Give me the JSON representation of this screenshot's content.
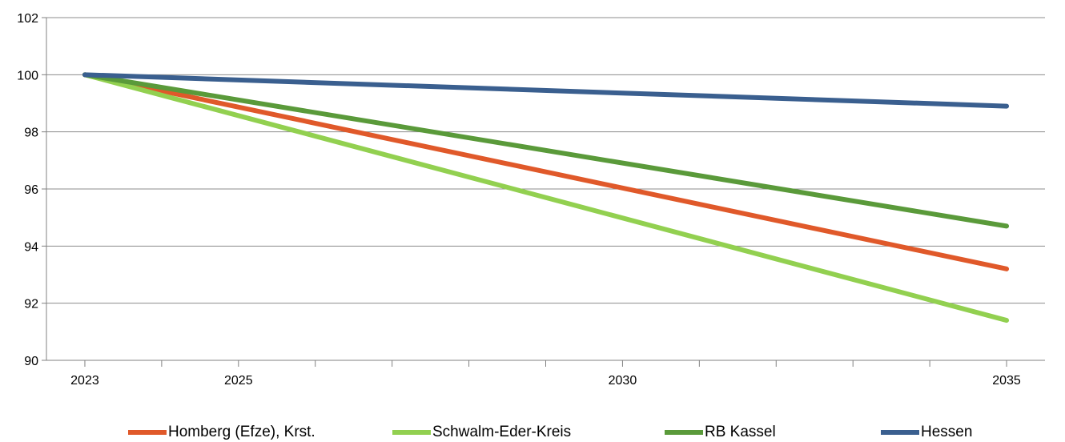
{
  "chart_data": {
    "type": "line",
    "title": "",
    "xlabel": "",
    "ylabel": "",
    "x": [
      2023,
      2035
    ],
    "xlim": [
      2022.5,
      2035.5
    ],
    "x_ticks": [
      2023,
      2024,
      2025,
      2026,
      2027,
      2028,
      2029,
      2030,
      2031,
      2032,
      2033,
      2034,
      2035
    ],
    "x_tick_labels": [
      {
        "value": 2023,
        "label": "2023"
      },
      {
        "value": 2025,
        "label": "2025"
      },
      {
        "value": 2030,
        "label": "2030"
      },
      {
        "value": 2035,
        "label": "2035"
      }
    ],
    "ylim": [
      90,
      102
    ],
    "y_ticks": [
      90,
      92,
      94,
      96,
      98,
      100,
      102
    ],
    "y_tick_labels": [
      "90",
      "92",
      "94",
      "96",
      "98",
      "100",
      "102"
    ],
    "grid": "horizontal",
    "legend_position": "bottom",
    "series": [
      {
        "name": "Homberg (Efze), Krst.",
        "color": "#e0592a",
        "values": [
          100,
          93.2
        ]
      },
      {
        "name": "Schwalm-Eder-Kreis",
        "color": "#92d050",
        "values": [
          100,
          91.4
        ]
      },
      {
        "name": "RB Kassel",
        "color": "#5a9a3a",
        "values": [
          100,
          94.7
        ]
      },
      {
        "name": "Hessen",
        "color": "#3a5f8f",
        "values": [
          100,
          98.9
        ]
      }
    ]
  }
}
